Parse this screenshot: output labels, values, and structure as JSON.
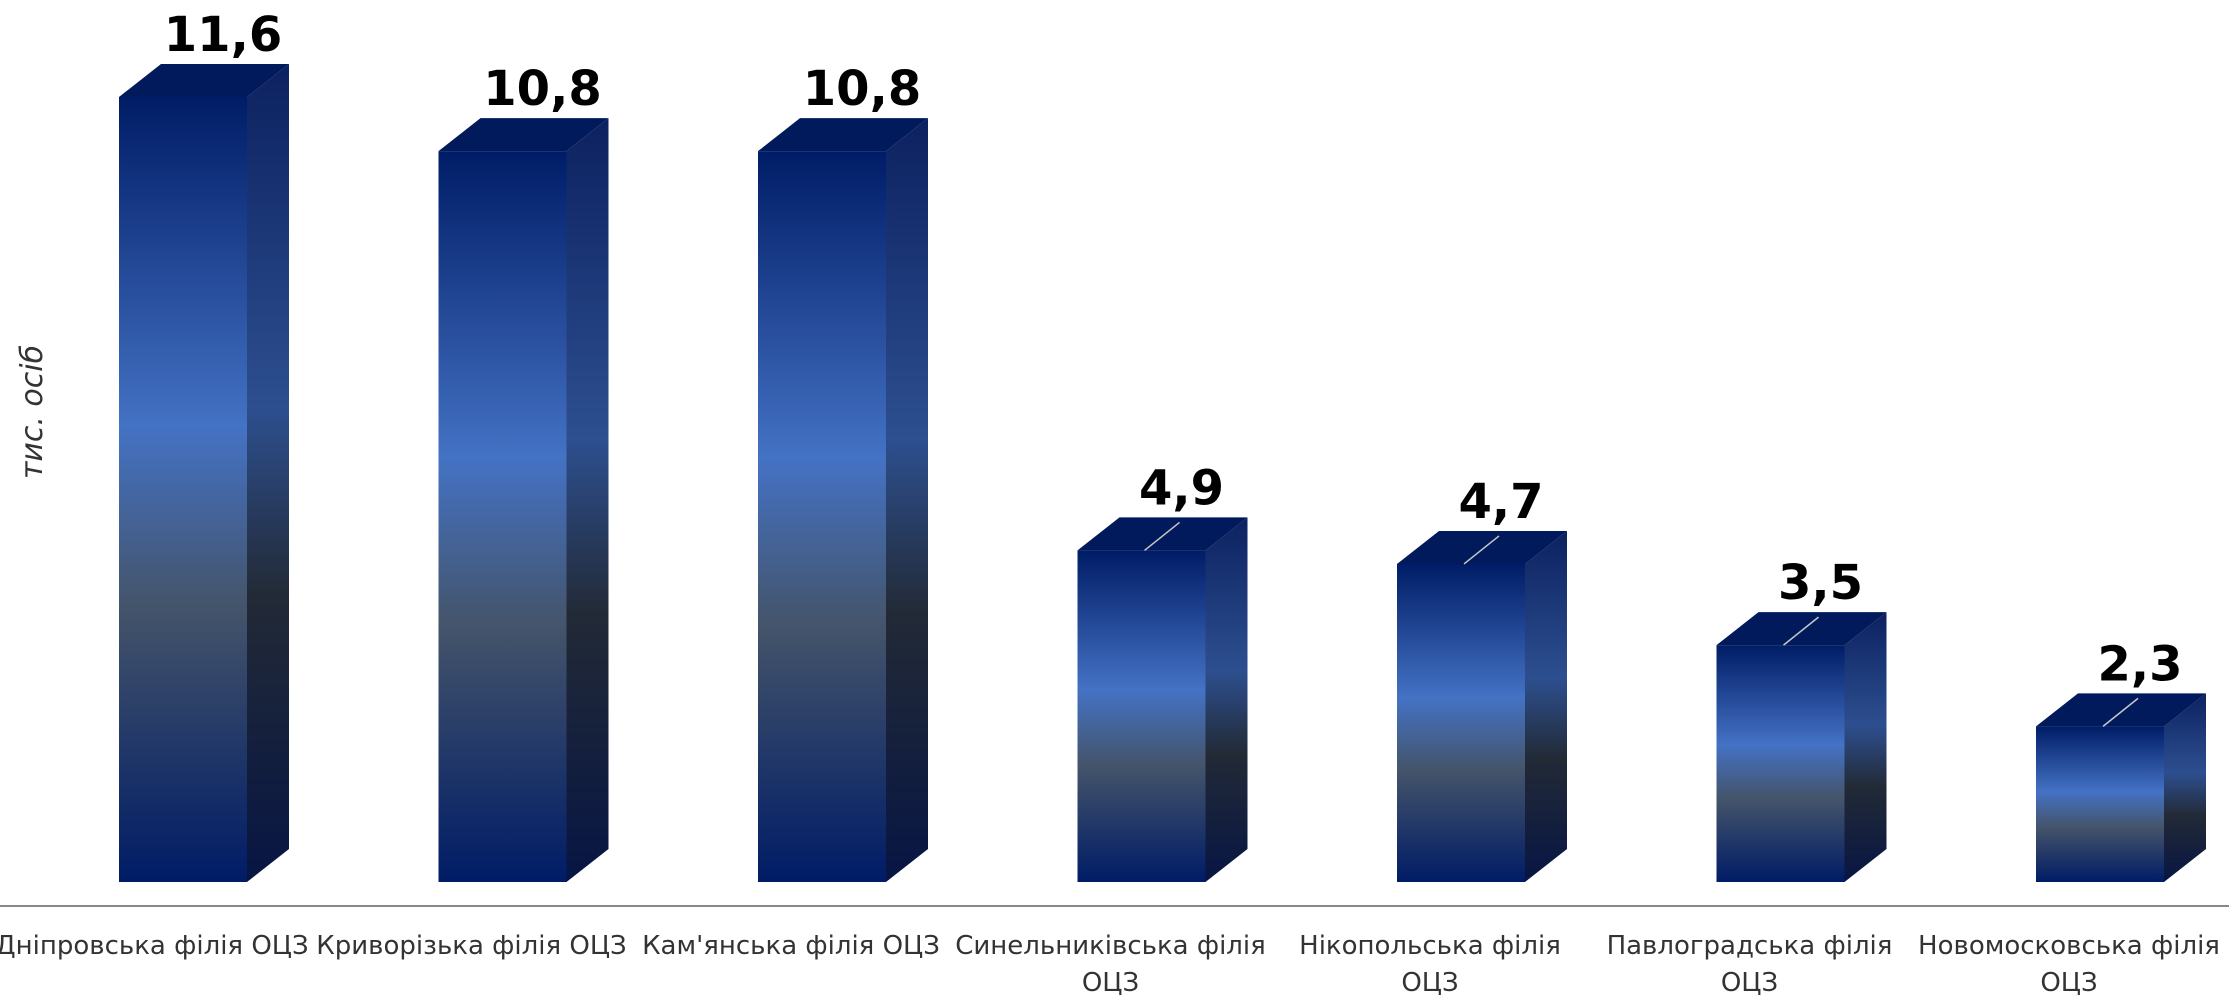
{
  "chart_data": {
    "type": "bar",
    "title": "",
    "xlabel": "",
    "ylabel": "тис. осіб",
    "categories": [
      [
        "Дніпровська філія ОЦЗ"
      ],
      [
        "Криворізька філія ОЦЗ"
      ],
      [
        "Кам'янська філія ОЦЗ"
      ],
      [
        "Синельниківська філія",
        "ОЦЗ"
      ],
      [
        "Нікопольська філія",
        "ОЦЗ"
      ],
      [
        "Павлоградська філія",
        "ОЦЗ"
      ],
      [
        "Новомосковська філія",
        "ОЦЗ"
      ]
    ],
    "values": [
      11.6,
      10.8,
      10.8,
      4.9,
      4.7,
      3.5,
      2.3
    ],
    "value_labels": [
      "11,6",
      "10,8",
      "10,8",
      "4,9",
      "4,7",
      "3,5",
      "2,3"
    ],
    "ylim": [
      0,
      11.6
    ],
    "grid": false,
    "legend": "none",
    "colors": {
      "bar_top": "#001a5c",
      "bar_mid": "#4472c4",
      "bar_dark": "#3a4a5e",
      "bar_bottom": "#0a1f5c",
      "axis": "#888888"
    }
  }
}
